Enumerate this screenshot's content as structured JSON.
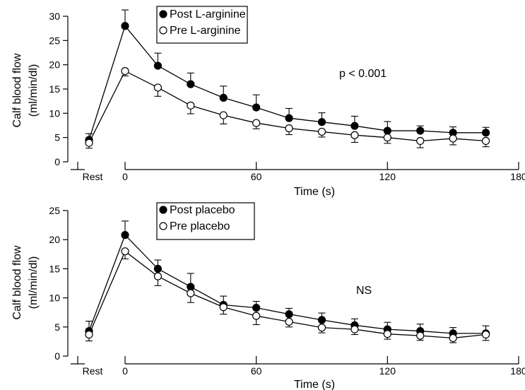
{
  "chart_data": [
    {
      "type": "line",
      "title": "",
      "xlabel": "Time (s)",
      "ylabel_lines": [
        "Calf blood flow",
        "(ml/min/dl)"
      ],
      "x_tick_labels": [
        "Rest",
        "0",
        "60",
        "120",
        "180"
      ],
      "y_ticks": [
        0,
        5,
        10,
        15,
        20,
        25,
        30
      ],
      "xlim": [
        0,
        180
      ],
      "ylim": [
        0,
        30
      ],
      "annotation": "p < 0.001",
      "legend_position": "top-left",
      "series": [
        {
          "name": "Post L-arginine",
          "marker": "filled",
          "rest": {
            "y": 4.5,
            "err": 1.3
          },
          "x": [
            0,
            15,
            30,
            45,
            60,
            75,
            90,
            105,
            120,
            135,
            150,
            165
          ],
          "y": [
            28,
            19.8,
            16,
            13.2,
            11.2,
            9,
            8.2,
            7.4,
            6.4,
            6.4,
            6,
            6
          ],
          "err": [
            3.3,
            2.6,
            2.3,
            2.4,
            2.6,
            2.0,
            1.9,
            2.0,
            1.9,
            1.0,
            1.2,
            1.1
          ]
        },
        {
          "name": "Pre L-arginine",
          "marker": "open",
          "rest": {
            "y": 3.9,
            "err": 1.1
          },
          "x": [
            0,
            15,
            30,
            45,
            60,
            75,
            90,
            105,
            120,
            135,
            150,
            165
          ],
          "y": [
            18.7,
            15.3,
            11.6,
            9.6,
            8,
            6.9,
            6.2,
            5.5,
            5,
            4.3,
            4.8,
            4.3
          ],
          "err": [
            1.0,
            1.8,
            1.7,
            1.8,
            1.2,
            1.3,
            1.1,
            1.5,
            1.2,
            1.4,
            1.3,
            1.2
          ]
        }
      ]
    },
    {
      "type": "line",
      "title": "",
      "xlabel": "Time (s)",
      "ylabel_lines": [
        "Calf blood flow",
        "(ml/min/dl)"
      ],
      "x_tick_labels": [
        "Rest",
        "0",
        "60",
        "120",
        "180"
      ],
      "y_ticks": [
        0,
        5,
        10,
        15,
        20,
        25
      ],
      "xlim": [
        0,
        180
      ],
      "ylim": [
        0,
        25
      ],
      "annotation": "NS",
      "legend_position": "top-left",
      "series": [
        {
          "name": "Post placebo",
          "marker": "filled",
          "rest": {
            "y": 4.3,
            "err": 1.7
          },
          "x": [
            0,
            15,
            30,
            45,
            60,
            75,
            90,
            105,
            120,
            135,
            150,
            165
          ],
          "y": [
            20.8,
            15,
            11.9,
            8.8,
            8.3,
            7.2,
            6.2,
            5.3,
            4.6,
            4.3,
            3.9,
            3.9
          ],
          "err": [
            2.4,
            1.5,
            2.3,
            1.5,
            1.1,
            1.0,
            1.2,
            1.1,
            1.2,
            1.2,
            1.0,
            1.3
          ]
        },
        {
          "name": "Pre placebo",
          "marker": "open",
          "rest": {
            "y": 3.7,
            "err": 1.1
          },
          "x": [
            0,
            15,
            30,
            45,
            60,
            75,
            90,
            105,
            120,
            135,
            150,
            165
          ],
          "y": [
            18,
            13.7,
            10.8,
            8.4,
            6.9,
            5.9,
            4.9,
            4.6,
            3.8,
            3.5,
            3.1,
            3.7
          ],
          "err": [
            1.3,
            1.6,
            1.6,
            1.2,
            1.5,
            0.9,
            0.9,
            0.9,
            0.9,
            0.8,
            0.8,
            1.0
          ]
        }
      ]
    }
  ]
}
